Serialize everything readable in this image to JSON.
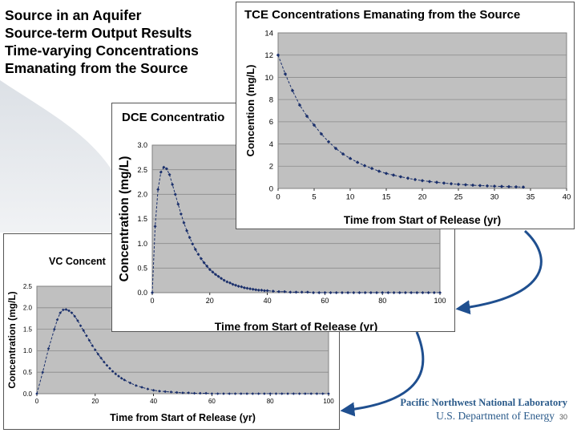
{
  "slide": {
    "title_lines": [
      "Source in an Aquifer",
      "Source-term Output Results",
      "Time-varying Concentrations",
      "Emanating from the Source"
    ],
    "footer_lab": "Pacific Northwest National Laboratory",
    "footer_doe": "U.S. Department of Energy",
    "page_number": "30",
    "arrow_color": "#1f4f8f"
  },
  "chart_data": [
    {
      "id": "tce",
      "type": "line",
      "title": "TCE Concentrations Emanating from the Source",
      "xlabel": "Time from Start of Release (yr)",
      "ylabel": "Concention (mg/L)",
      "xlim": [
        0,
        40
      ],
      "ylim": [
        0,
        14
      ],
      "xticks": [
        "0",
        "5",
        "10",
        "15",
        "20",
        "25",
        "30",
        "35",
        "40"
      ],
      "yticks": [
        "0",
        "2",
        "4",
        "6",
        "8",
        "10",
        "12",
        "14"
      ],
      "grid": true,
      "legend": "none",
      "series": [
        {
          "color": "#1a2f6b",
          "x": [
            0,
            1,
            2,
            3,
            4,
            5,
            6,
            7,
            8,
            9,
            10,
            11,
            12,
            13,
            14,
            15,
            16,
            17,
            18,
            19,
            20,
            21,
            22,
            23,
            24,
            25,
            26,
            27,
            28,
            29,
            30,
            31,
            32,
            33,
            34
          ],
          "y": [
            12.0,
            10.3,
            8.8,
            7.5,
            6.5,
            5.7,
            4.9,
            4.2,
            3.6,
            3.1,
            2.7,
            2.35,
            2.05,
            1.8,
            1.55,
            1.35,
            1.2,
            1.05,
            0.92,
            0.8,
            0.7,
            0.62,
            0.55,
            0.48,
            0.42,
            0.37,
            0.33,
            0.29,
            0.26,
            0.23,
            0.2,
            0.18,
            0.16,
            0.14,
            0.12
          ]
        }
      ]
    },
    {
      "id": "dce",
      "type": "line",
      "title": "DCE Concentratio",
      "xlabel": "Time from Start of Release (yr)",
      "ylabel": "Concentration (mg/L)",
      "xlim": [
        0,
        100
      ],
      "ylim": [
        0,
        3.0
      ],
      "xticks": [
        "0",
        "20",
        "40",
        "60",
        "80",
        "100"
      ],
      "yticks": [
        "0.0",
        "0.5",
        "1.0",
        "1.5",
        "2.0",
        "2.5",
        "3.0"
      ],
      "grid": true,
      "legend": "none",
      "series": [
        {
          "color": "#1a2f6b",
          "x": [
            0,
            1,
            2,
            3,
            4,
            5,
            6,
            7,
            8,
            9,
            10,
            11,
            12,
            13,
            14,
            15,
            16,
            17,
            18,
            19,
            20,
            21,
            22,
            23,
            24,
            25,
            26,
            27,
            28,
            29,
            30,
            31,
            32,
            33,
            34,
            35,
            36,
            37,
            38,
            39,
            40,
            42,
            44,
            46,
            48,
            50,
            52,
            54,
            56,
            58,
            60,
            62,
            64,
            66,
            68,
            70,
            72,
            74,
            76,
            78,
            80,
            82,
            84,
            86,
            88,
            90,
            92,
            94,
            96,
            98,
            100
          ],
          "y": [
            0.0,
            1.35,
            2.1,
            2.45,
            2.55,
            2.52,
            2.4,
            2.2,
            2.0,
            1.8,
            1.6,
            1.42,
            1.26,
            1.12,
            0.99,
            0.88,
            0.78,
            0.69,
            0.61,
            0.54,
            0.47,
            0.42,
            0.37,
            0.33,
            0.29,
            0.25,
            0.22,
            0.2,
            0.17,
            0.15,
            0.13,
            0.12,
            0.1,
            0.09,
            0.08,
            0.07,
            0.06,
            0.05,
            0.05,
            0.04,
            0.04,
            0.03,
            0.02,
            0.02,
            0.01,
            0.01,
            0.01,
            0.01,
            0.0,
            0.0,
            0.0,
            0.0,
            0.0,
            0.0,
            0.0,
            0.0,
            0.0,
            0.0,
            0.0,
            0.0,
            0.0,
            0.0,
            0.0,
            0.0,
            0.0,
            0.0,
            0.0,
            0.0,
            0.0,
            0.0,
            0.0
          ]
        }
      ]
    },
    {
      "id": "vc",
      "type": "line",
      "title": "VC Concent",
      "xlabel": "Time from Start of Release (yr)",
      "ylabel": "Concentration (mg/L)",
      "xlim": [
        0,
        100
      ],
      "ylim": [
        0,
        2.5
      ],
      "xticks": [
        "0",
        "20",
        "40",
        "60",
        "80",
        "100"
      ],
      "yticks": [
        "0.0",
        "0.5",
        "1.0",
        "1.5",
        "2.0",
        "2.5"
      ],
      "grid": true,
      "legend": "none",
      "series": [
        {
          "color": "#1a2f6b",
          "x": [
            0,
            2,
            4,
            6,
            7,
            8,
            9,
            10,
            11,
            12,
            13,
            14,
            15,
            16,
            17,
            18,
            19,
            20,
            21,
            22,
            23,
            24,
            25,
            26,
            27,
            28,
            29,
            30,
            32,
            34,
            36,
            38,
            40,
            42,
            44,
            46,
            48,
            50,
            52,
            54,
            56,
            58,
            60,
            62,
            64,
            66,
            68,
            70,
            72,
            74,
            76,
            78,
            80,
            82,
            84,
            86,
            88,
            90,
            92,
            94,
            96,
            98,
            100
          ],
          "y": [
            0.0,
            0.5,
            1.05,
            1.5,
            1.72,
            1.88,
            1.95,
            1.96,
            1.93,
            1.88,
            1.8,
            1.7,
            1.58,
            1.47,
            1.35,
            1.24,
            1.12,
            1.02,
            0.92,
            0.83,
            0.74,
            0.66,
            0.59,
            0.52,
            0.46,
            0.41,
            0.36,
            0.32,
            0.25,
            0.19,
            0.15,
            0.11,
            0.08,
            0.06,
            0.05,
            0.04,
            0.03,
            0.02,
            0.02,
            0.01,
            0.01,
            0.01,
            0.0,
            0.0,
            0.0,
            0.0,
            0.0,
            0.0,
            0.0,
            0.0,
            0.0,
            0.0,
            0.0,
            0.0,
            0.0,
            0.0,
            0.0,
            0.0,
            0.0,
            0.0,
            0.0,
            0.0,
            0.0
          ]
        }
      ]
    }
  ]
}
